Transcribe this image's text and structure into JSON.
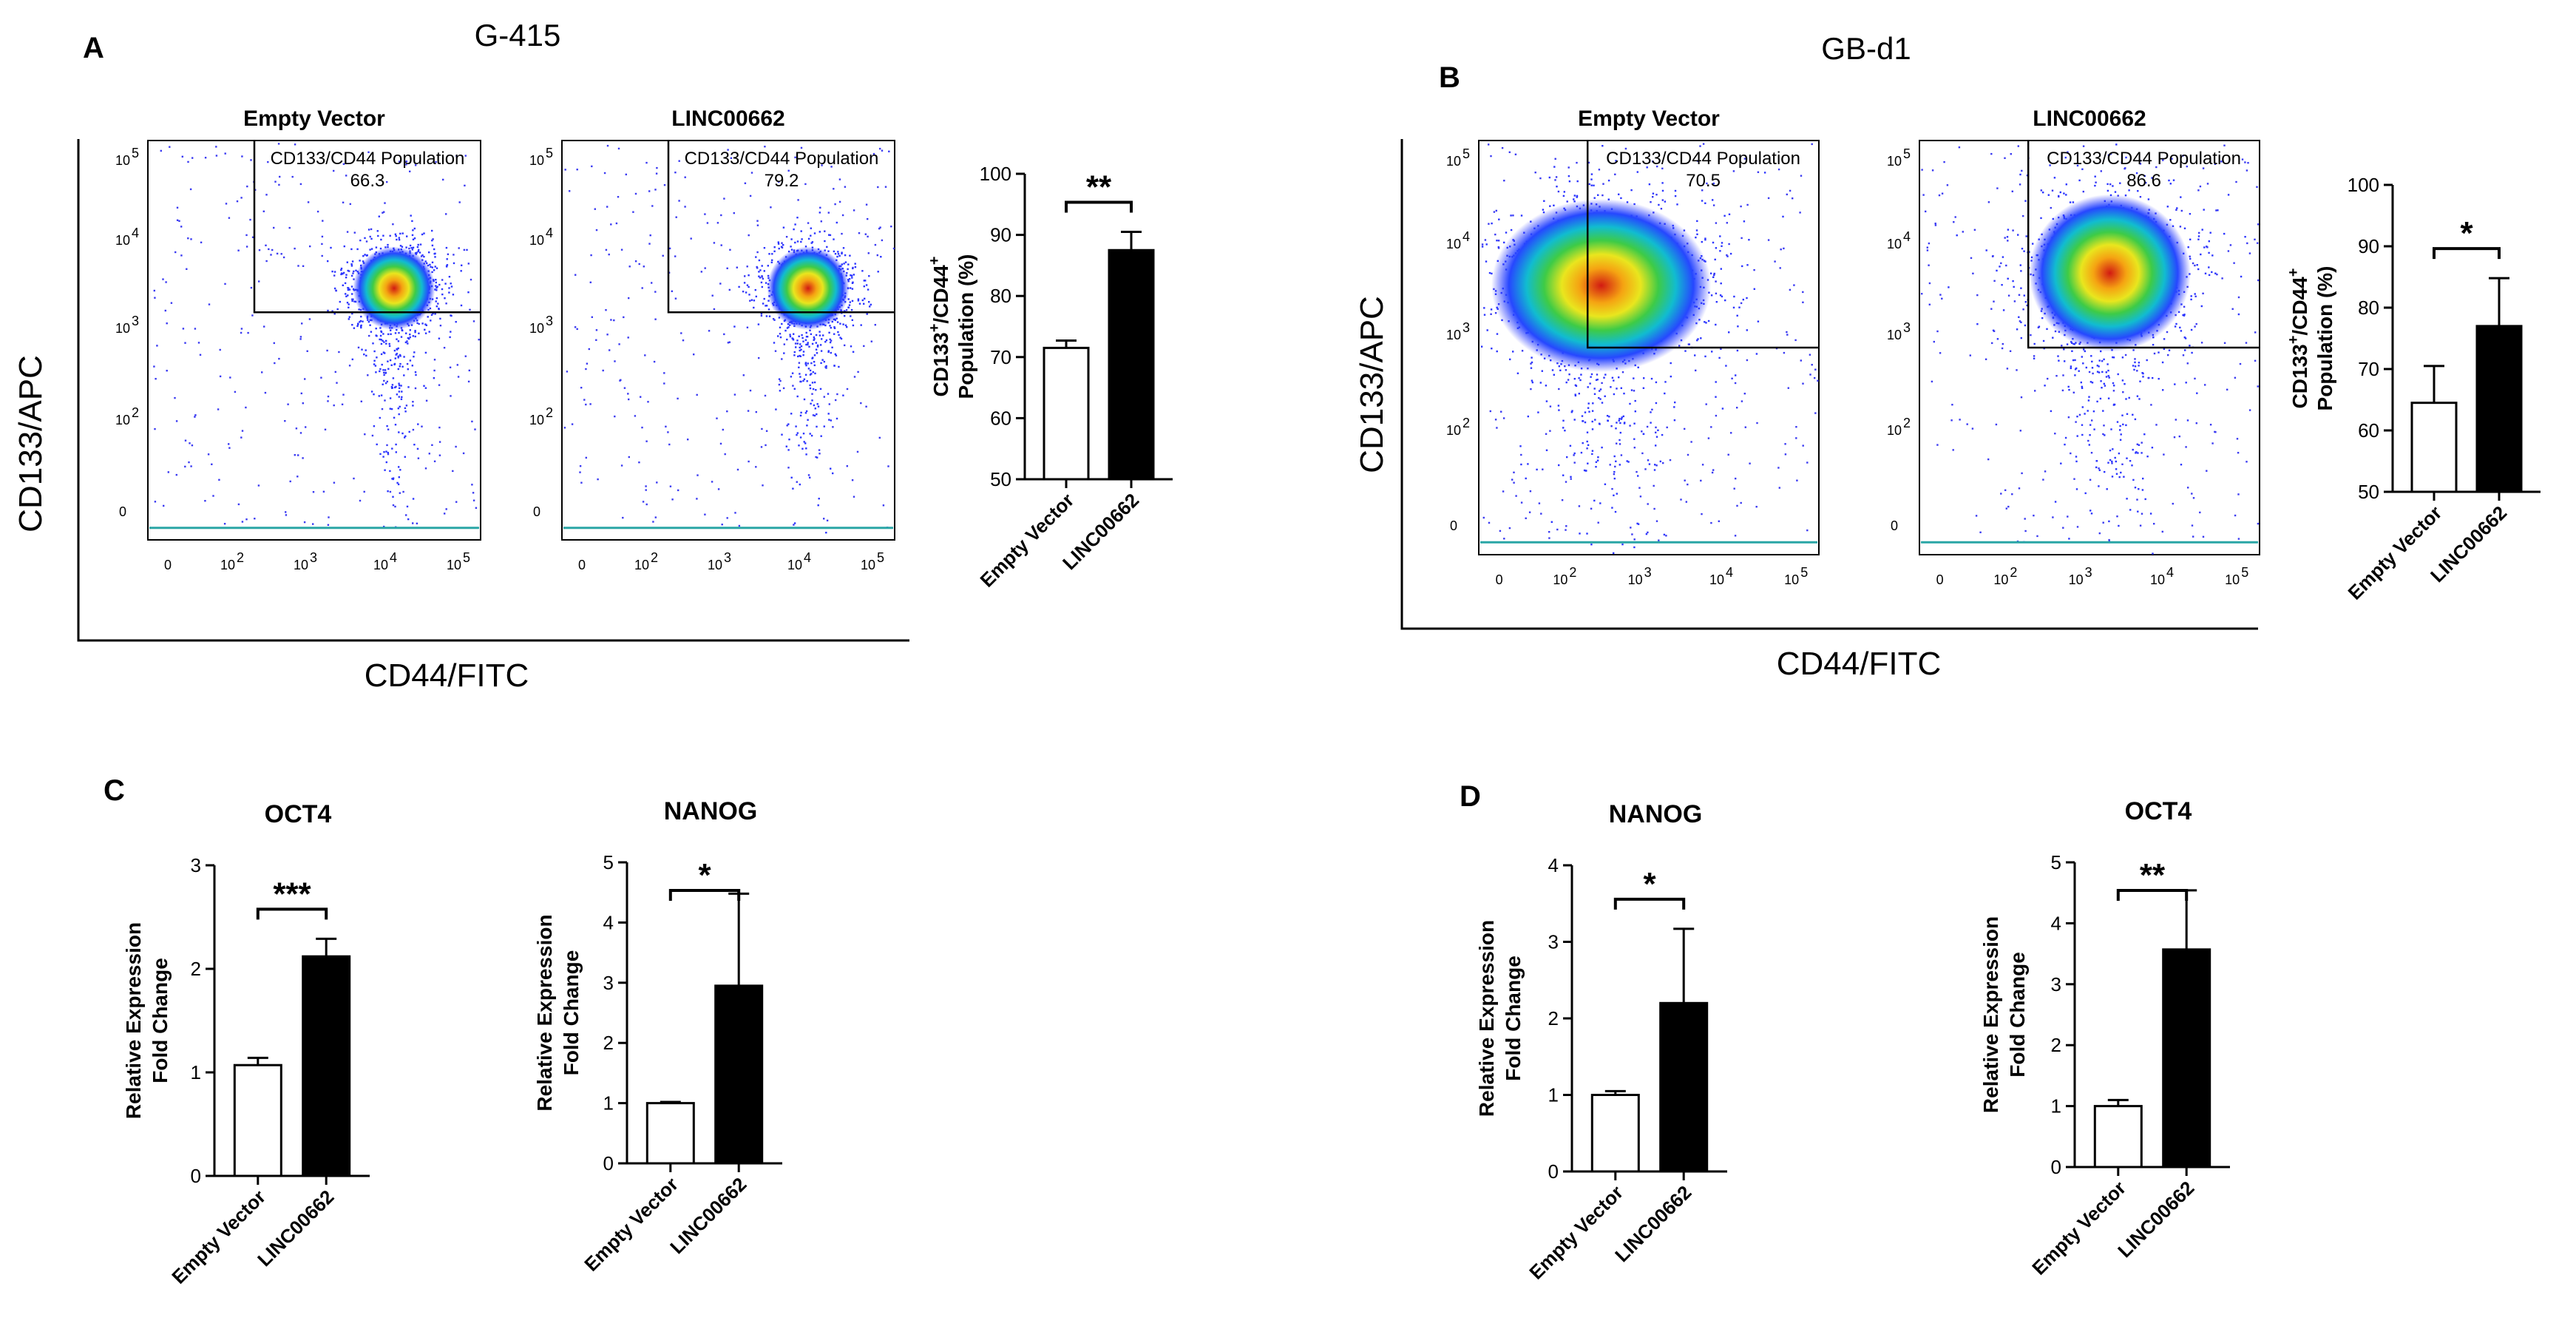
{
  "panels": {
    "A": {
      "letter": "A",
      "cell_line": "G-415",
      "y_axis_label": "CD133/APC",
      "x_axis_label": "CD44/FITC"
    },
    "B": {
      "letter": "B",
      "cell_line": "GB-d1",
      "y_axis_label": "CD133/APC",
      "x_axis_label": "CD44/FITC"
    },
    "C": {
      "letter": "C"
    },
    "D": {
      "letter": "D"
    }
  },
  "flow_plots": {
    "A1": {
      "title": "Empty Vector",
      "gate_label": "CD133/CD44 Population",
      "gate_value": "66.3"
    },
    "A2": {
      "title": "LINC00662",
      "gate_label": "CD133/CD44 Population",
      "gate_value": "79.2"
    },
    "B1": {
      "title": "Empty Vector",
      "gate_label": "CD133/CD44 Population",
      "gate_value": "70.5"
    },
    "B2": {
      "title": "LINC00662",
      "gate_label": "CD133/CD44 Population",
      "gate_value": "86.6"
    }
  },
  "flow_axis_ticks": {
    "x": [
      "0",
      "10",
      "10",
      "10",
      "10"
    ],
    "x_exp": [
      "",
      "2",
      "3",
      "4",
      "5"
    ],
    "y": [
      "0",
      "10",
      "10",
      "10",
      "10"
    ],
    "y_exp": [
      "",
      "2",
      "3",
      "4",
      "5"
    ]
  },
  "chart_data": [
    {
      "id": "A_bar",
      "type": "bar",
      "title": "",
      "categories": [
        "Empty Vector",
        "LINC00662"
      ],
      "values": [
        71.5,
        87.5
      ],
      "errors": [
        1.2,
        3.0
      ],
      "ylim": [
        50,
        100
      ],
      "yticks": [
        50,
        60,
        70,
        80,
        90,
        100
      ],
      "ylabel_lines": [
        "CD133",
        "+",
        "/CD44",
        "+",
        "Population (%)"
      ],
      "significance": "**"
    },
    {
      "id": "B_bar",
      "type": "bar",
      "title": "",
      "categories": [
        "Empty Vector",
        "LINC00662"
      ],
      "values": [
        64.5,
        77.0
      ],
      "errors": [
        6.0,
        7.8
      ],
      "ylim": [
        50,
        100
      ],
      "yticks": [
        50,
        60,
        70,
        80,
        90,
        100
      ],
      "ylabel_lines": [
        "CD133",
        "+",
        "/CD44",
        "+",
        "Population (%)"
      ],
      "significance": "*"
    },
    {
      "id": "C_oct4",
      "type": "bar",
      "title": "OCT4",
      "categories": [
        "Empty Vector",
        "LINC00662"
      ],
      "values": [
        1.07,
        2.12
      ],
      "errors": [
        0.07,
        0.17
      ],
      "ylim": [
        0,
        3
      ],
      "yticks": [
        0,
        1,
        2,
        3
      ],
      "ylabel_lines": [
        "Relative Expression",
        "Fold Change"
      ],
      "significance": "***"
    },
    {
      "id": "C_nanog",
      "type": "bar",
      "title": "NANOG",
      "categories": [
        "Empty Vector",
        "LINC00662"
      ],
      "values": [
        1.0,
        2.95
      ],
      "errors": [
        0.02,
        1.53
      ],
      "ylim": [
        0,
        5
      ],
      "yticks": [
        0,
        1,
        2,
        3,
        4,
        5
      ],
      "ylabel_lines": [
        "Relative Expression",
        "Fold Change"
      ],
      "significance": "*"
    },
    {
      "id": "D_nanog",
      "type": "bar",
      "title": "NANOG",
      "categories": [
        "Empty Vector",
        "LINC00662"
      ],
      "values": [
        1.0,
        2.2
      ],
      "errors": [
        0.05,
        0.97
      ],
      "ylim": [
        0,
        4
      ],
      "yticks": [
        0,
        1,
        2,
        3,
        4
      ],
      "ylabel_lines": [
        "Relative Expression",
        "Fold Change"
      ],
      "significance": "*"
    },
    {
      "id": "D_oct4",
      "type": "bar",
      "title": "OCT4",
      "categories": [
        "Empty Vector",
        "LINC00662"
      ],
      "values": [
        1.0,
        3.57
      ],
      "errors": [
        0.1,
        0.97
      ],
      "ylim": [
        0,
        5
      ],
      "yticks": [
        0,
        1,
        2,
        3,
        4,
        5
      ],
      "ylabel_lines": [
        "Relative Expression",
        "Fold Change"
      ],
      "significance": "**"
    }
  ]
}
